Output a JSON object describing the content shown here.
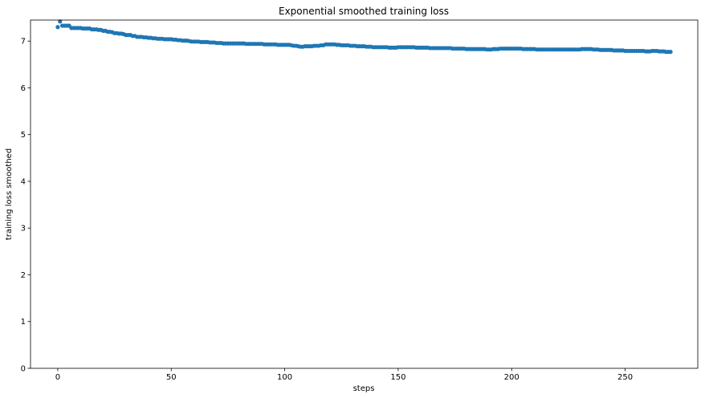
{
  "chart_data": {
    "type": "scatter",
    "title": "Exponential smoothed training loss",
    "xlabel": "steps",
    "ylabel": "training loss smoothed",
    "xlim": [
      -12,
      282
    ],
    "ylim": [
      0,
      7.45
    ],
    "xticks": [
      0,
      50,
      100,
      150,
      200,
      250
    ],
    "yticks": [
      0,
      1,
      2,
      3,
      4,
      5,
      6,
      7
    ],
    "grid": false,
    "series": [
      {
        "color": "#1f77b4",
        "x": [
          0,
          1,
          2,
          3,
          4,
          5,
          6,
          7,
          8,
          9,
          10,
          11,
          12,
          13,
          14,
          15,
          16,
          17,
          18,
          19,
          20,
          21,
          22,
          23,
          24,
          25,
          26,
          27,
          28,
          29,
          30,
          31,
          32,
          33,
          34,
          35,
          36,
          37,
          38,
          39,
          40,
          41,
          42,
          43,
          44,
          45,
          46,
          47,
          48,
          49,
          50,
          51,
          52,
          53,
          54,
          55,
          56,
          57,
          58,
          59,
          60,
          61,
          62,
          63,
          64,
          65,
          66,
          67,
          68,
          69,
          70,
          71,
          72,
          73,
          74,
          75,
          76,
          77,
          78,
          79,
          80,
          81,
          82,
          83,
          84,
          85,
          86,
          87,
          88,
          89,
          90,
          91,
          92,
          93,
          94,
          95,
          96,
          97,
          98,
          99,
          100,
          101,
          102,
          103,
          104,
          105,
          106,
          107,
          108,
          109,
          110,
          111,
          112,
          113,
          114,
          115,
          116,
          117,
          118,
          119,
          120,
          121,
          122,
          123,
          124,
          125,
          126,
          127,
          128,
          129,
          130,
          131,
          132,
          133,
          134,
          135,
          136,
          137,
          138,
          139,
          140,
          141,
          142,
          143,
          144,
          145,
          146,
          147,
          148,
          149,
          150,
          151,
          152,
          153,
          154,
          155,
          156,
          157,
          158,
          159,
          160,
          161,
          162,
          163,
          164,
          165,
          166,
          167,
          168,
          169,
          170,
          171,
          172,
          173,
          174,
          175,
          176,
          177,
          178,
          179,
          180,
          181,
          182,
          183,
          184,
          185,
          186,
          187,
          188,
          189,
          190,
          191,
          192,
          193,
          194,
          195,
          196,
          197,
          198,
          199,
          200,
          201,
          202,
          203,
          204,
          205,
          206,
          207,
          208,
          209,
          210,
          211,
          212,
          213,
          214,
          215,
          216,
          217,
          218,
          219,
          220,
          221,
          222,
          223,
          224,
          225,
          226,
          227,
          228,
          229,
          230,
          231,
          232,
          233,
          234,
          235,
          236,
          237,
          238,
          239,
          240,
          241,
          242,
          243,
          244,
          245,
          246,
          247,
          248,
          249,
          250,
          251,
          252,
          253,
          254,
          255,
          256,
          257,
          258,
          259,
          260,
          261,
          262,
          263,
          264,
          265,
          266,
          267,
          268,
          269,
          270
        ],
        "y": [
          7.3,
          7.42,
          7.33,
          7.33,
          7.33,
          7.33,
          7.28,
          7.28,
          7.28,
          7.28,
          7.28,
          7.27,
          7.27,
          7.27,
          7.27,
          7.25,
          7.25,
          7.25,
          7.24,
          7.24,
          7.22,
          7.22,
          7.2,
          7.2,
          7.19,
          7.17,
          7.17,
          7.16,
          7.16,
          7.15,
          7.13,
          7.13,
          7.13,
          7.11,
          7.11,
          7.09,
          7.09,
          7.09,
          7.08,
          7.08,
          7.07,
          7.07,
          7.06,
          7.06,
          7.05,
          7.05,
          7.05,
          7.04,
          7.04,
          7.04,
          7.04,
          7.03,
          7.03,
          7.02,
          7.02,
          7.01,
          7.01,
          7.01,
          7.0,
          6.99,
          6.99,
          6.99,
          6.99,
          6.98,
          6.98,
          6.98,
          6.98,
          6.97,
          6.97,
          6.97,
          6.96,
          6.96,
          6.96,
          6.95,
          6.95,
          6.95,
          6.95,
          6.95,
          6.95,
          6.95,
          6.95,
          6.95,
          6.95,
          6.94,
          6.94,
          6.94,
          6.94,
          6.94,
          6.94,
          6.94,
          6.94,
          6.93,
          6.93,
          6.93,
          6.93,
          6.93,
          6.93,
          6.92,
          6.92,
          6.92,
          6.92,
          6.92,
          6.92,
          6.91,
          6.9,
          6.9,
          6.89,
          6.88,
          6.88,
          6.89,
          6.89,
          6.89,
          6.89,
          6.9,
          6.9,
          6.9,
          6.91,
          6.91,
          6.93,
          6.93,
          6.93,
          6.93,
          6.93,
          6.92,
          6.92,
          6.91,
          6.91,
          6.91,
          6.91,
          6.9,
          6.9,
          6.9,
          6.89,
          6.89,
          6.89,
          6.89,
          6.88,
          6.88,
          6.88,
          6.87,
          6.87,
          6.87,
          6.87,
          6.87,
          6.87,
          6.87,
          6.86,
          6.86,
          6.86,
          6.86,
          6.87,
          6.87,
          6.87,
          6.87,
          6.87,
          6.87,
          6.87,
          6.87,
          6.86,
          6.86,
          6.86,
          6.86,
          6.86,
          6.86,
          6.85,
          6.85,
          6.85,
          6.85,
          6.85,
          6.85,
          6.85,
          6.85,
          6.85,
          6.85,
          6.84,
          6.84,
          6.84,
          6.84,
          6.84,
          6.84,
          6.83,
          6.83,
          6.83,
          6.83,
          6.83,
          6.83,
          6.83,
          6.83,
          6.83,
          6.82,
          6.82,
          6.82,
          6.83,
          6.83,
          6.83,
          6.84,
          6.84,
          6.84,
          6.84,
          6.84,
          6.84,
          6.84,
          6.84,
          6.84,
          6.84,
          6.83,
          6.83,
          6.83,
          6.83,
          6.83,
          6.83,
          6.82,
          6.82,
          6.82,
          6.82,
          6.82,
          6.82,
          6.82,
          6.82,
          6.82,
          6.82,
          6.82,
          6.82,
          6.82,
          6.82,
          6.82,
          6.82,
          6.82,
          6.82,
          6.82,
          6.82,
          6.83,
          6.83,
          6.83,
          6.83,
          6.83,
          6.82,
          6.82,
          6.82,
          6.81,
          6.81,
          6.81,
          6.81,
          6.81,
          6.81,
          6.8,
          6.8,
          6.8,
          6.8,
          6.8,
          6.79,
          6.79,
          6.79,
          6.79,
          6.79,
          6.79,
          6.79,
          6.79,
          6.79,
          6.78,
          6.78,
          6.78,
          6.79,
          6.79,
          6.79,
          6.78,
          6.78,
          6.78,
          6.77,
          6.77,
          6.77
        ]
      }
    ]
  }
}
